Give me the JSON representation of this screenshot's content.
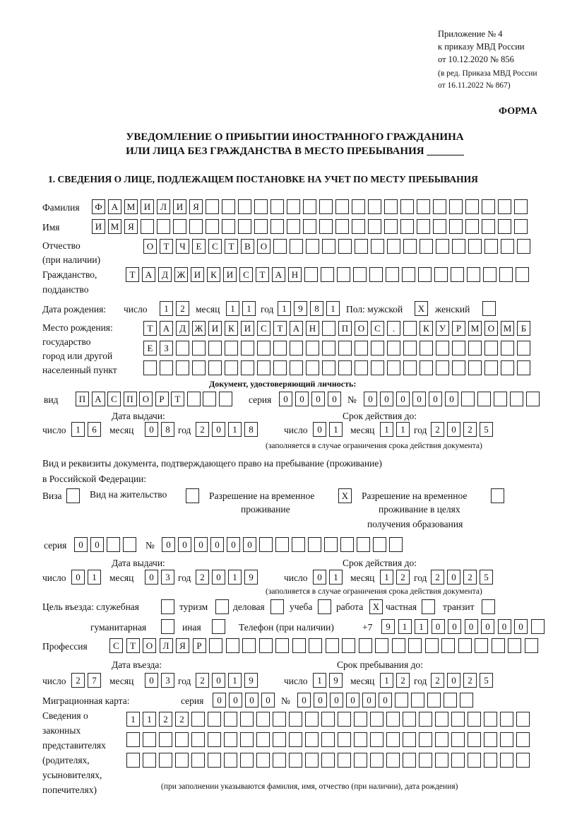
{
  "header": {
    "line1": "Приложение № 4",
    "line2": "к приказу МВД России",
    "line3": "от 10.12.2020 № 856",
    "line4": "(в ред. Приказа МВД России",
    "line5": "от 16.11.2022 № 867)",
    "forma": "ФОРМА"
  },
  "title": {
    "line1": "УВЕДОМЛЕНИЕ О ПРИБЫТИИ ИНОСТРАННОГО ГРАЖДАНИНА",
    "line2": "ИЛИ ЛИЦА БЕЗ ГРАЖДАНСТВА В МЕСТО ПРЕБЫВАНИЯ _______"
  },
  "section1": "1. СВЕДЕНИЯ О ЛИЦЕ, ПОДЛЕЖАЩЕМ ПОСТАНОВКЕ НА УЧЕТ ПО МЕСТУ ПРЕБЫВАНИЯ",
  "labels": {
    "surname": "Фамилия",
    "name": "Имя",
    "patronymic": "Отчество",
    "patronymic2": "(при наличии)",
    "citizenship": "Гражданство,",
    "citizenship2": "подданство",
    "birth_date": "Дата рождения:",
    "day": "число",
    "month": "месяц",
    "year": "год",
    "sex": "Пол: мужской",
    "female": "женский",
    "birthplace1": "Место рождения:",
    "birthplace2": "государство",
    "birthplace3": "город или другой",
    "birthplace4": "населенный пункт",
    "id_doc": "Документ, удостоверяющий личность:",
    "kind": "вид",
    "series": "серия",
    "number": "№",
    "issue_date": "Дата выдачи:",
    "valid_until": "Срок действия до:",
    "valid_note": "(заполняется в случае ограничения срока действия документа)",
    "right_doc1": "Вид и реквизиты документа, подтверждающего право на пребывание (проживание)",
    "right_doc2": "в Российской Федерации:",
    "visa": "Виза",
    "residence": "Вид на жительство",
    "temp_permit1": "Разрешение на временное",
    "temp_permit2": "проживание",
    "edu_permit1": "Разрешение на временное",
    "edu_permit2": "проживание в целях",
    "edu_permit3": "получения образования",
    "purpose": "Цель въезда: служебная",
    "tourism": "туризм",
    "business": "деловая",
    "study": "учеба",
    "work": "работа",
    "private": "частная",
    "transit": "транзит",
    "humanitarian": "гуманитарная",
    "other": "иная",
    "phone": "Телефон (при наличии)",
    "phone_prefix": "+7",
    "profession": "Профессия",
    "entry_date": "Дата въезда:",
    "stay_until": "Срок пребывания до:",
    "migration_card": "Миграционная карта:",
    "reps1": "Сведения о",
    "reps2": "законных",
    "reps3": "представителях",
    "reps4": "(родителях,",
    "reps5": "усыновителях,",
    "reps6": "попечителях)",
    "reps_note": "(при заполнении указываются фамилия, имя, отчество (при наличии), дата рождения)"
  },
  "person": {
    "surname": "ФАМИЛИЯ",
    "name": "ИМЯ",
    "patronymic": "ОТЧЕСТВО",
    "citizenship": "ТАДЖИКИСТАН",
    "birth_day": "12",
    "birth_month": "11",
    "birth_year": "1981",
    "male": "X",
    "female": "",
    "birthplace_row1": "ТАДЖИКИСТАН ПОС. КУРМОМБ",
    "birthplace_row2": "ЕЗ",
    "birthplace_row3": ""
  },
  "id_document": {
    "kind": "ПАСПОРТ",
    "series": "0000",
    "number": "000000",
    "issue_day": "16",
    "issue_month": "08",
    "issue_year": "2018",
    "valid_day": "01",
    "valid_month": "11",
    "valid_year": "2025"
  },
  "right_document": {
    "visa": "",
    "residence": "",
    "temp_permit": "X",
    "edu_permit": "",
    "series": "00",
    "number": "000000",
    "issue_day": "01",
    "issue_month": "03",
    "issue_year": "2019",
    "valid_day": "01",
    "valid_month": "12",
    "valid_year": "2025"
  },
  "purpose": {
    "service": "",
    "tourism": "",
    "business": "",
    "study": "",
    "work": "X",
    "private": "",
    "transit": "",
    "humanitarian": "",
    "other": ""
  },
  "phone": "911000000",
  "profession": "СТОЛЯР",
  "entry": {
    "day": "27",
    "month": "03",
    "year": "2019",
    "stay_day": "19",
    "stay_month": "12",
    "stay_year": "2025"
  },
  "migration_card": {
    "series": "0000",
    "number": "000000"
  },
  "representatives": {
    "row1": "1122",
    "row2": "",
    "row3": ""
  }
}
